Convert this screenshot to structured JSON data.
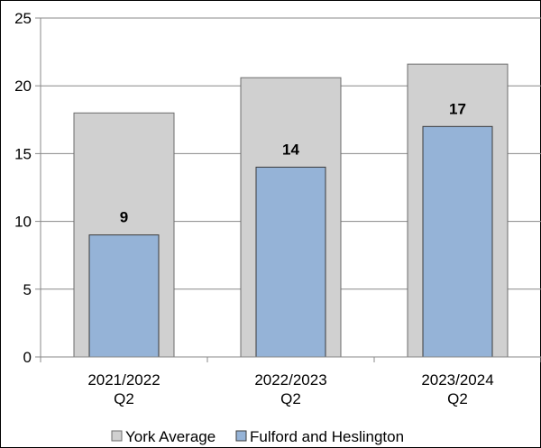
{
  "chart_data": {
    "type": "bar",
    "categories": [
      [
        "2021/2022",
        "Q2"
      ],
      [
        "2022/2023",
        "Q2"
      ],
      [
        "2023/2024",
        "Q2"
      ]
    ],
    "series": [
      {
        "name": "York Average",
        "values": [
          18,
          20.6,
          21.6
        ],
        "color": "#d0d0d0",
        "labels": []
      },
      {
        "name": "Fulford and Heslington",
        "values": [
          9,
          14,
          17
        ],
        "color": "#95b3d7",
        "labels": [
          "9",
          "14",
          "17"
        ]
      }
    ],
    "ylim": [
      0,
      25
    ],
    "yticks": [
      0,
      5,
      10,
      15,
      20,
      25
    ],
    "grid": true,
    "legend_position": "bottom",
    "title": "",
    "xlabel": "",
    "ylabel": ""
  }
}
